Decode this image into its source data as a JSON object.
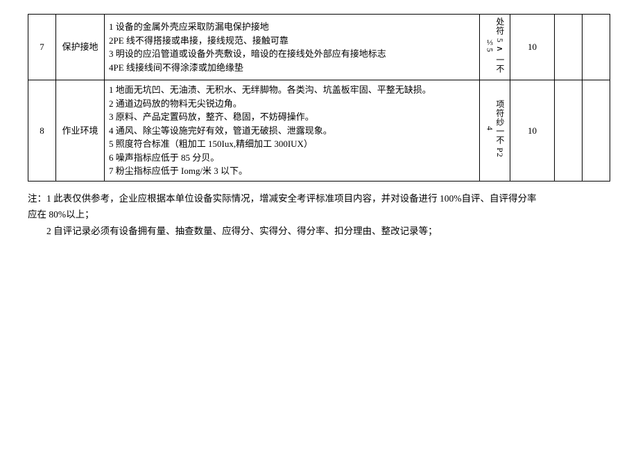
{
  "table": {
    "rows": [
      {
        "num": "7",
        "name": "保护接地",
        "desc": "1 设备的金属外壳应采取防漏电保护接地\n2PE 线不得搭接或串接，接线规范、接触可靠\n3 明设的应沿管道或设备外壳敷设，暗设的在接线处外部应有接地标志\n4PE 线接线间不得涂漆或加绝缘垫",
        "crit": "处符 5 ∧ 一不\n⅓5",
        "score": "10"
      },
      {
        "num": "8",
        "name": "作业环境",
        "desc": "1 地面无坑凹、无油渍、无积水、无绊脚物。各类沟、坑盖板牢固、平整无缺损。\n2 通道边码放的物料无尖锐边角。\n3 原料、产品定置码放，整齐、稳固，不妨碍操作。\n4 通风、除尘等设施完好有效，管道无破损、泄露现象。\n5 照度符合标准（粗加工 150Iux,精细加工 300IUX）\n6 噪声指标应低于 85 分贝。\n7 粉尘指标应低于 Iomg/米 3 以下。",
        "crit": "项符纱一不 P2\n4",
        "score": "10"
      }
    ]
  },
  "notes": {
    "line1": "注：1 此表仅供参考，企业应根据本单位设备实际情况，增减安全考评标准项目内容，并对设备进行 100%自评、自评得分率",
    "line1b": "应在 80%以上；",
    "line2": "2 自评记录必须有设备拥有量、抽查数量、应得分、实得分、得分率、扣分理由、整改记录等；"
  }
}
